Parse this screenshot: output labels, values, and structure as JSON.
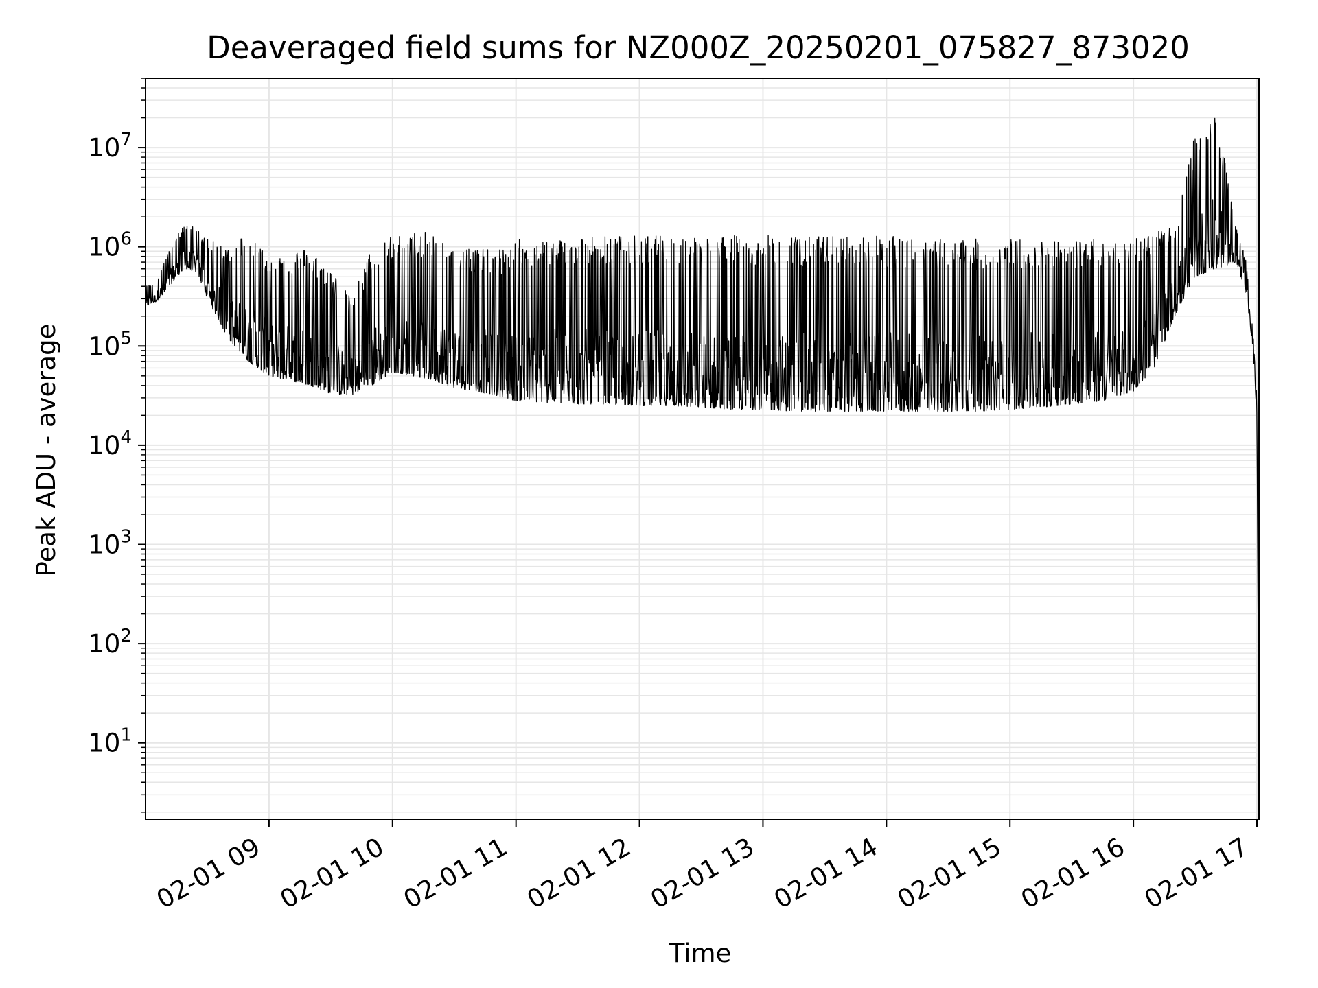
{
  "chart_data": {
    "type": "line",
    "title": "Deaveraged field sums for NZ000Z_20250201_075827_873020",
    "xlabel": "Time",
    "ylabel": "Peak ADU - average",
    "yscale": "log",
    "ylim": [
      1.7,
      50000000
    ],
    "xlim": [
      "02-01 08:00",
      "02-01 17:01"
    ],
    "grid": true,
    "line_color": "#000000",
    "grid_color": "#e6e6e6",
    "x_ticks": [
      {
        "value": "02-01 09:00",
        "label": "02-01 09"
      },
      {
        "value": "02-01 10:00",
        "label": "02-01 10"
      },
      {
        "value": "02-01 11:00",
        "label": "02-01 11"
      },
      {
        "value": "02-01 12:00",
        "label": "02-01 12"
      },
      {
        "value": "02-01 13:00",
        "label": "02-01 13"
      },
      {
        "value": "02-01 14:00",
        "label": "02-01 14"
      },
      {
        "value": "02-01 15:00",
        "label": "02-01 15"
      },
      {
        "value": "02-01 16:00",
        "label": "02-01 16"
      },
      {
        "value": "02-01 17:00",
        "label": "02-01 17"
      }
    ],
    "y_ticks": [
      {
        "value": 10,
        "base": "10",
        "exp": "1"
      },
      {
        "value": 100,
        "base": "10",
        "exp": "2"
      },
      {
        "value": 1000,
        "base": "10",
        "exp": "3"
      },
      {
        "value": 10000,
        "base": "10",
        "exp": "4"
      },
      {
        "value": 100000,
        "base": "10",
        "exp": "5"
      },
      {
        "value": 1000000,
        "base": "10",
        "exp": "6"
      },
      {
        "value": 10000000,
        "base": "10",
        "exp": "7"
      }
    ],
    "series": [
      {
        "x": [
          "02-01 08:00",
          "02-01 08:05",
          "02-01 08:10",
          "02-01 08:15",
          "02-01 08:20",
          "02-01 08:25",
          "02-01 08:30",
          "02-01 08:40",
          "02-01 08:50",
          "02-01 09:00",
          "02-01 09:10",
          "02-01 09:20",
          "02-01 09:30",
          "02-01 09:40",
          "02-01 09:50",
          "02-01 10:00",
          "02-01 10:10",
          "02-01 10:20",
          "02-01 10:30",
          "02-01 10:40",
          "02-01 10:50",
          "02-01 11:00",
          "02-01 11:15",
          "02-01 11:30",
          "02-01 11:45",
          "02-01 12:00",
          "02-01 12:15",
          "02-01 12:30",
          "02-01 12:45",
          "02-01 13:00",
          "02-01 13:15",
          "02-01 13:30",
          "02-01 13:45",
          "02-01 14:00",
          "02-01 14:15",
          "02-01 14:30",
          "02-01 14:45",
          "02-01 15:00",
          "02-01 15:15",
          "02-01 15:30",
          "02-01 15:45",
          "02-01 16:00",
          "02-01 16:10",
          "02-01 16:20",
          "02-01 16:30",
          "02-01 16:40",
          "02-01 16:50",
          "02-01 16:55",
          "02-01 16:58",
          "02-01 17:00",
          "02-01 17:01"
        ],
        "y_low": [
          250000,
          280000,
          350000,
          500000,
          600000,
          550000,
          300000,
          120000,
          70000,
          50000,
          45000,
          40000,
          33000,
          32000,
          40000,
          55000,
          50000,
          45000,
          38000,
          35000,
          32000,
          28000,
          27000,
          26000,
          26000,
          25000,
          25000,
          24000,
          23000,
          23000,
          22000,
          22000,
          22000,
          22000,
          22000,
          22000,
          22000,
          23000,
          24000,
          26000,
          28000,
          35000,
          60000,
          200000,
          500000,
          600000,
          700000,
          300000,
          100000,
          20000,
          4
        ],
        "y_high": [
          400000,
          450000,
          800000,
          1300000,
          1800000,
          1500000,
          1200000,
          1000000,
          1500000,
          800000,
          900000,
          1000000,
          600000,
          300000,
          1000000,
          1300000,
          1400000,
          1400000,
          1200000,
          1000000,
          900000,
          1200000,
          1200000,
          1300000,
          1300000,
          1300000,
          1300000,
          1300000,
          1300000,
          1300000,
          1300000,
          1300000,
          1300000,
          1300000,
          1200000,
          1200000,
          1200000,
          1200000,
          1200000,
          1200000,
          1200000,
          1300000,
          1400000,
          1600000,
          14000000,
          24000000,
          1600000,
          700000,
          150000,
          30000,
          4
        ]
      }
    ]
  }
}
